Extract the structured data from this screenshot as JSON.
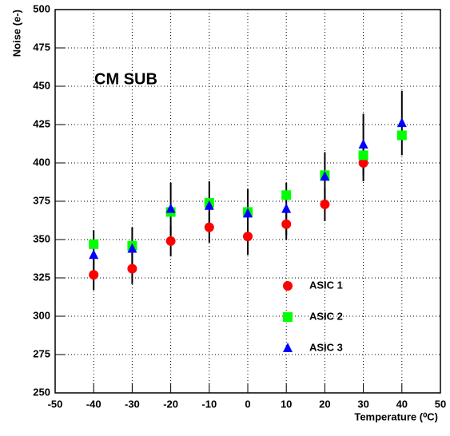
{
  "chart_data": {
    "type": "scatter",
    "y_label": "Noise (e-)",
    "x_label": "Temperature (⁰C)",
    "annotation": "CM SUB",
    "x": [
      -40,
      -30,
      -20,
      -10,
      0,
      10,
      20,
      30,
      40
    ],
    "series": [
      {
        "name": "ASIC 1",
        "color": "#ff0000",
        "marker": "circle",
        "values": [
          327,
          331,
          349,
          358,
          352,
          360,
          373,
          400,
          null
        ],
        "errors": [
          10,
          10,
          10,
          10,
          12,
          10,
          11,
          12,
          null
        ]
      },
      {
        "name": "ASIC 2",
        "color": "#00ff00",
        "marker": "square",
        "values": [
          347,
          346,
          368,
          374,
          368,
          379,
          392,
          405,
          418
        ]
      },
      {
        "name": "ASIC 3",
        "color": "#0000ff",
        "marker": "triangle",
        "values": [
          340,
          344,
          370,
          372,
          367,
          370,
          391,
          412,
          426
        ],
        "errors": [
          16,
          14,
          17,
          16,
          16,
          17,
          16,
          20,
          21
        ]
      }
    ],
    "xlim": [
      -50,
      50
    ],
    "xticks": [
      -50,
      -40,
      -30,
      -20,
      -10,
      0,
      10,
      20,
      30,
      40,
      50
    ],
    "ylim": [
      250,
      500
    ],
    "yticks": [
      250,
      275,
      300,
      325,
      350,
      375,
      400,
      425,
      450,
      475,
      500
    ],
    "grid": true
  }
}
